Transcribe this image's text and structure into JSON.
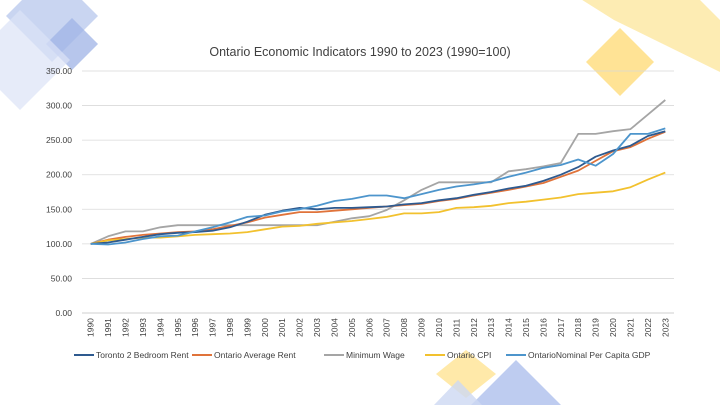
{
  "slide": {
    "accent_left": "#9fb3e6",
    "accent_right": "#ffd24d"
  },
  "chart_data": {
    "type": "line",
    "title": "Ontario Economic Indicators 1990 to 2023 (1990=100)",
    "xlabel": "",
    "ylabel": "",
    "ylim": [
      0,
      350
    ],
    "yticks": [
      "0.00",
      "50.00",
      "100.00",
      "150.00",
      "200.00",
      "250.00",
      "300.00",
      "350.00"
    ],
    "grid": true,
    "legend_position": "bottom",
    "categories": [
      "1990",
      "1991",
      "1992",
      "1993",
      "1994",
      "1995",
      "1996",
      "1997",
      "1998",
      "1999",
      "2000",
      "2001",
      "2002",
      "2003",
      "2004",
      "2005",
      "2006",
      "2007",
      "2008",
      "2009",
      "2010",
      "2011",
      "2012",
      "2013",
      "2014",
      "2015",
      "2016",
      "2017",
      "2018",
      "2019",
      "2020",
      "2021",
      "2022",
      "2023"
    ],
    "series": [
      {
        "name": "Toronto 2 Bedroom Rent",
        "color": "#2e5a8f",
        "values": [
          100,
          102,
          106,
          110,
          114,
          116,
          117,
          119,
          124,
          132,
          142,
          148,
          152,
          150,
          152,
          152,
          153,
          154,
          157,
          159,
          163,
          166,
          171,
          175,
          180,
          184,
          191,
          200,
          211,
          226,
          235,
          242,
          256,
          263
        ]
      },
      {
        "name": "Ontario Average Rent",
        "color": "#e0733a",
        "values": [
          100,
          106,
          110,
          113,
          115,
          117,
          118,
          121,
          126,
          131,
          138,
          142,
          146,
          146,
          148,
          150,
          152,
          154,
          156,
          158,
          162,
          165,
          170,
          174,
          178,
          183,
          188,
          197,
          206,
          220,
          234,
          240,
          252,
          262
        ]
      },
      {
        "name": "Minimum Wage",
        "color": "#a5a5a5",
        "values": [
          100,
          111,
          118,
          118,
          124,
          127,
          127,
          127,
          127,
          127,
          127,
          127,
          127,
          127,
          132,
          137,
          140,
          149,
          163,
          178,
          189,
          189,
          189,
          189,
          205,
          208,
          212,
          217,
          259,
          259,
          263,
          266,
          287,
          308
        ]
      },
      {
        "name": "Ontario CPI",
        "color": "#f2c12e",
        "values": [
          100,
          105,
          107,
          109,
          109,
          111,
          113,
          114,
          115,
          117,
          121,
          125,
          126,
          129,
          131,
          133,
          136,
          139,
          144,
          144,
          146,
          152,
          153,
          155,
          159,
          161,
          164,
          167,
          172,
          174,
          176,
          182,
          193,
          203
        ]
      },
      {
        "name": "OntarioNominal  Per Capita GDP",
        "color": "#4d95cc",
        "values": [
          100,
          99,
          102,
          107,
          111,
          112,
          118,
          124,
          131,
          139,
          141,
          147,
          150,
          155,
          162,
          165,
          170,
          170,
          166,
          172,
          178,
          183,
          186,
          190,
          197,
          203,
          210,
          214,
          222,
          213,
          230,
          259,
          259,
          267
        ]
      }
    ]
  }
}
